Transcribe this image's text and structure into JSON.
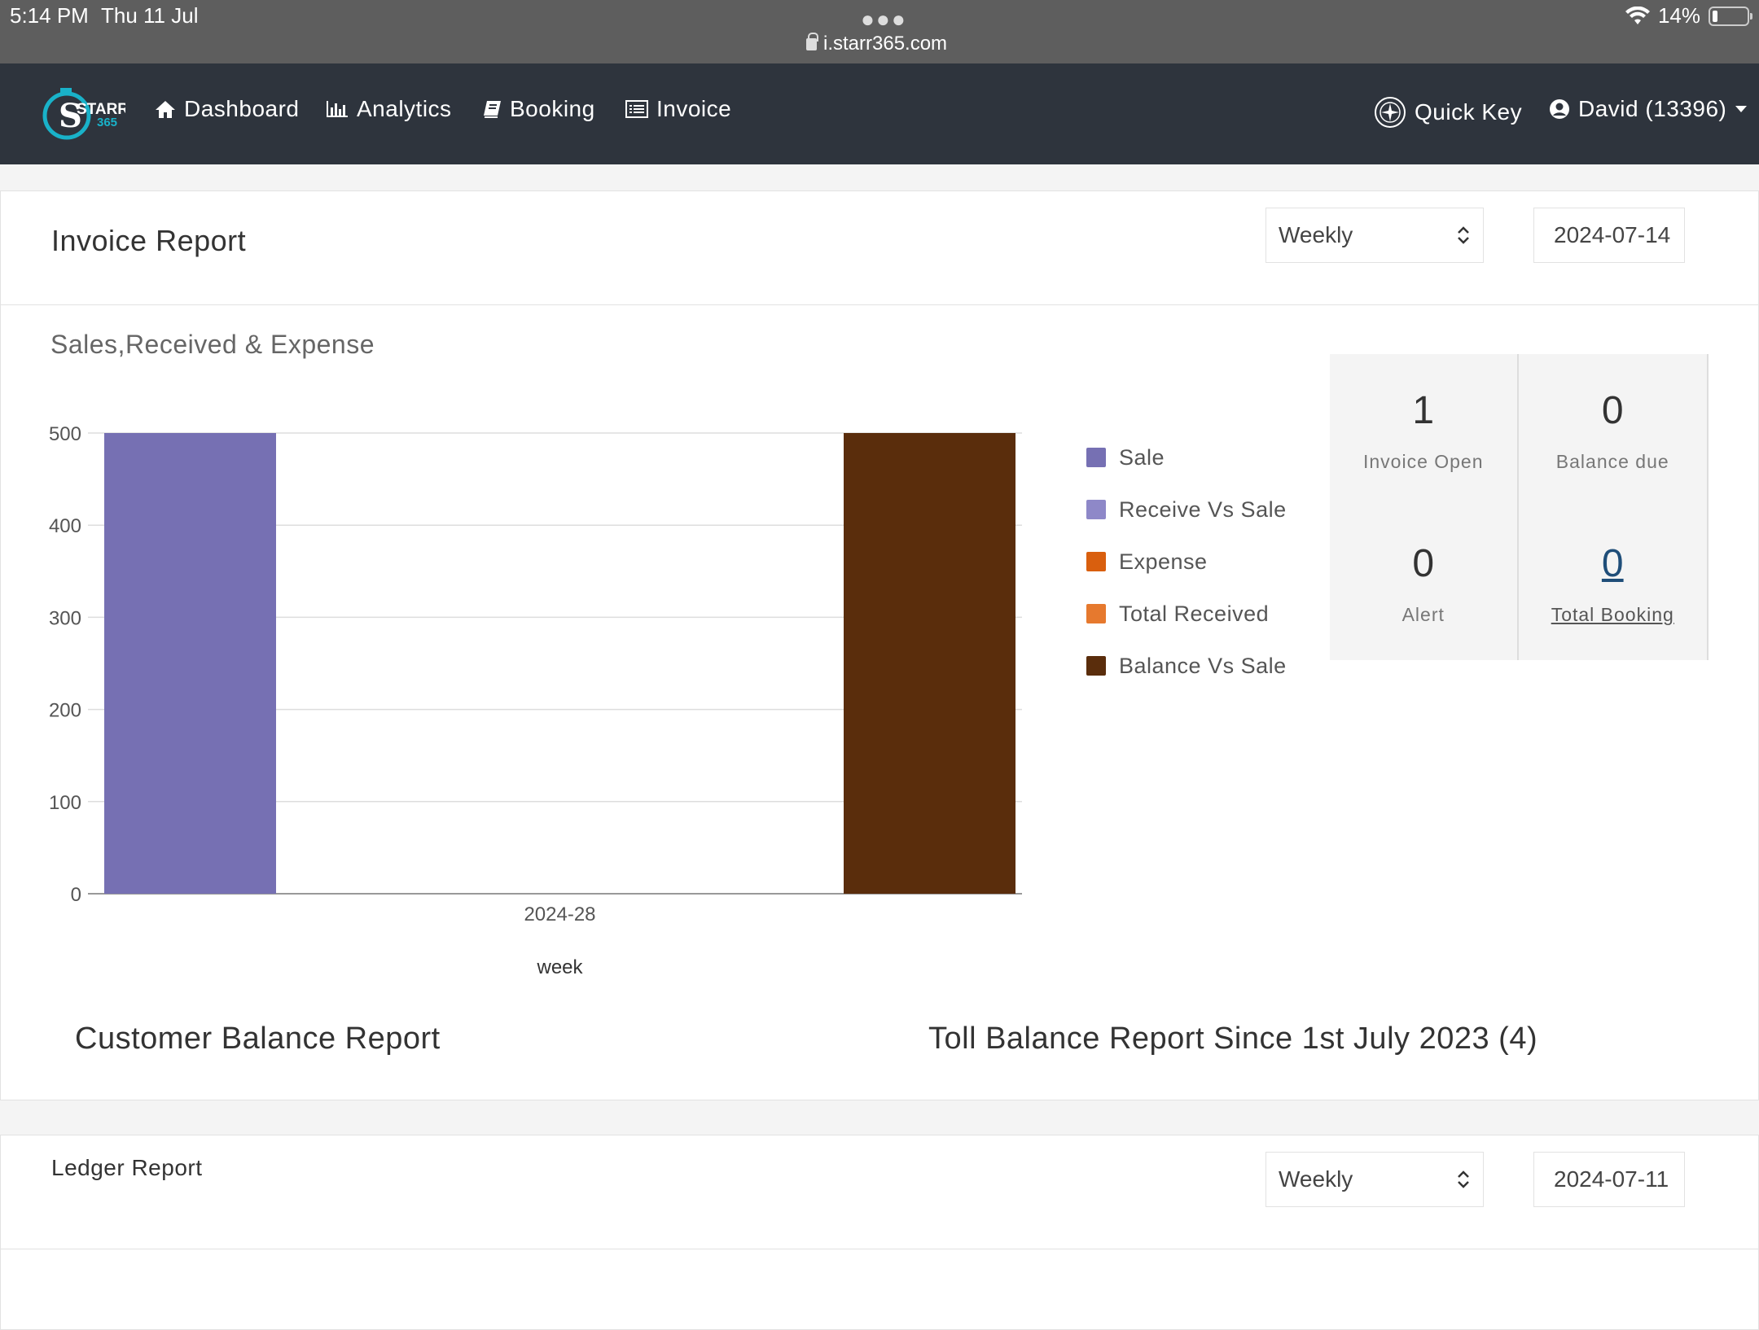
{
  "status_bar": {
    "time": "5:14 PM",
    "date": "Thu 11 Jul",
    "url": "i.starr365.com",
    "battery": "14%"
  },
  "nav": {
    "logo_text": "STARR",
    "logo_sub": "365",
    "items": [
      {
        "label": "Dashboard",
        "icon": "home-icon"
      },
      {
        "label": "Analytics",
        "icon": "bar-chart-icon"
      },
      {
        "label": "Booking",
        "icon": "book-icon"
      },
      {
        "label": "Invoice",
        "icon": "list-icon"
      }
    ],
    "quick_key": "Quick Key",
    "user": "David (13396)"
  },
  "invoice_card": {
    "title": "Invoice Report",
    "period": "Weekly",
    "date": "2024-07-14",
    "chart_title": "Sales,Received & Expense",
    "customer_balance_title": "Customer Balance Report",
    "toll_balance_title": "Toll Balance Report Since 1st July 2023 (4)"
  },
  "stats": [
    {
      "value": "1",
      "label": "Invoice Open"
    },
    {
      "value": "0",
      "label": "Balance due"
    },
    {
      "value": "0",
      "label": "Alert"
    },
    {
      "value": "0",
      "label": "Total Booking"
    }
  ],
  "chart_data": {
    "type": "bar",
    "title": "Sales,Received & Expense",
    "categories": [
      "2024-28"
    ],
    "xlabel": "week",
    "ylabel": "",
    "ylim": [
      0,
      500
    ],
    "yticks": [
      0,
      100,
      200,
      300,
      400,
      500
    ],
    "legend_position": "right",
    "grid": true,
    "series": [
      {
        "name": "Sale",
        "values": [
          500
        ],
        "color": "#7670b3"
      },
      {
        "name": "Receive Vs Sale",
        "values": [
          0
        ],
        "color": "#8e88c8"
      },
      {
        "name": "Expense",
        "values": [
          0
        ],
        "color": "#d95f0e"
      },
      {
        "name": "Total Received",
        "values": [
          0
        ],
        "color": "#e6792e"
      },
      {
        "name": "Balance Vs Sale",
        "values": [
          500
        ],
        "color": "#5a2d0c"
      }
    ]
  },
  "ledger_card": {
    "title": "Ledger Report",
    "period": "Weekly",
    "date": "2024-07-11"
  }
}
